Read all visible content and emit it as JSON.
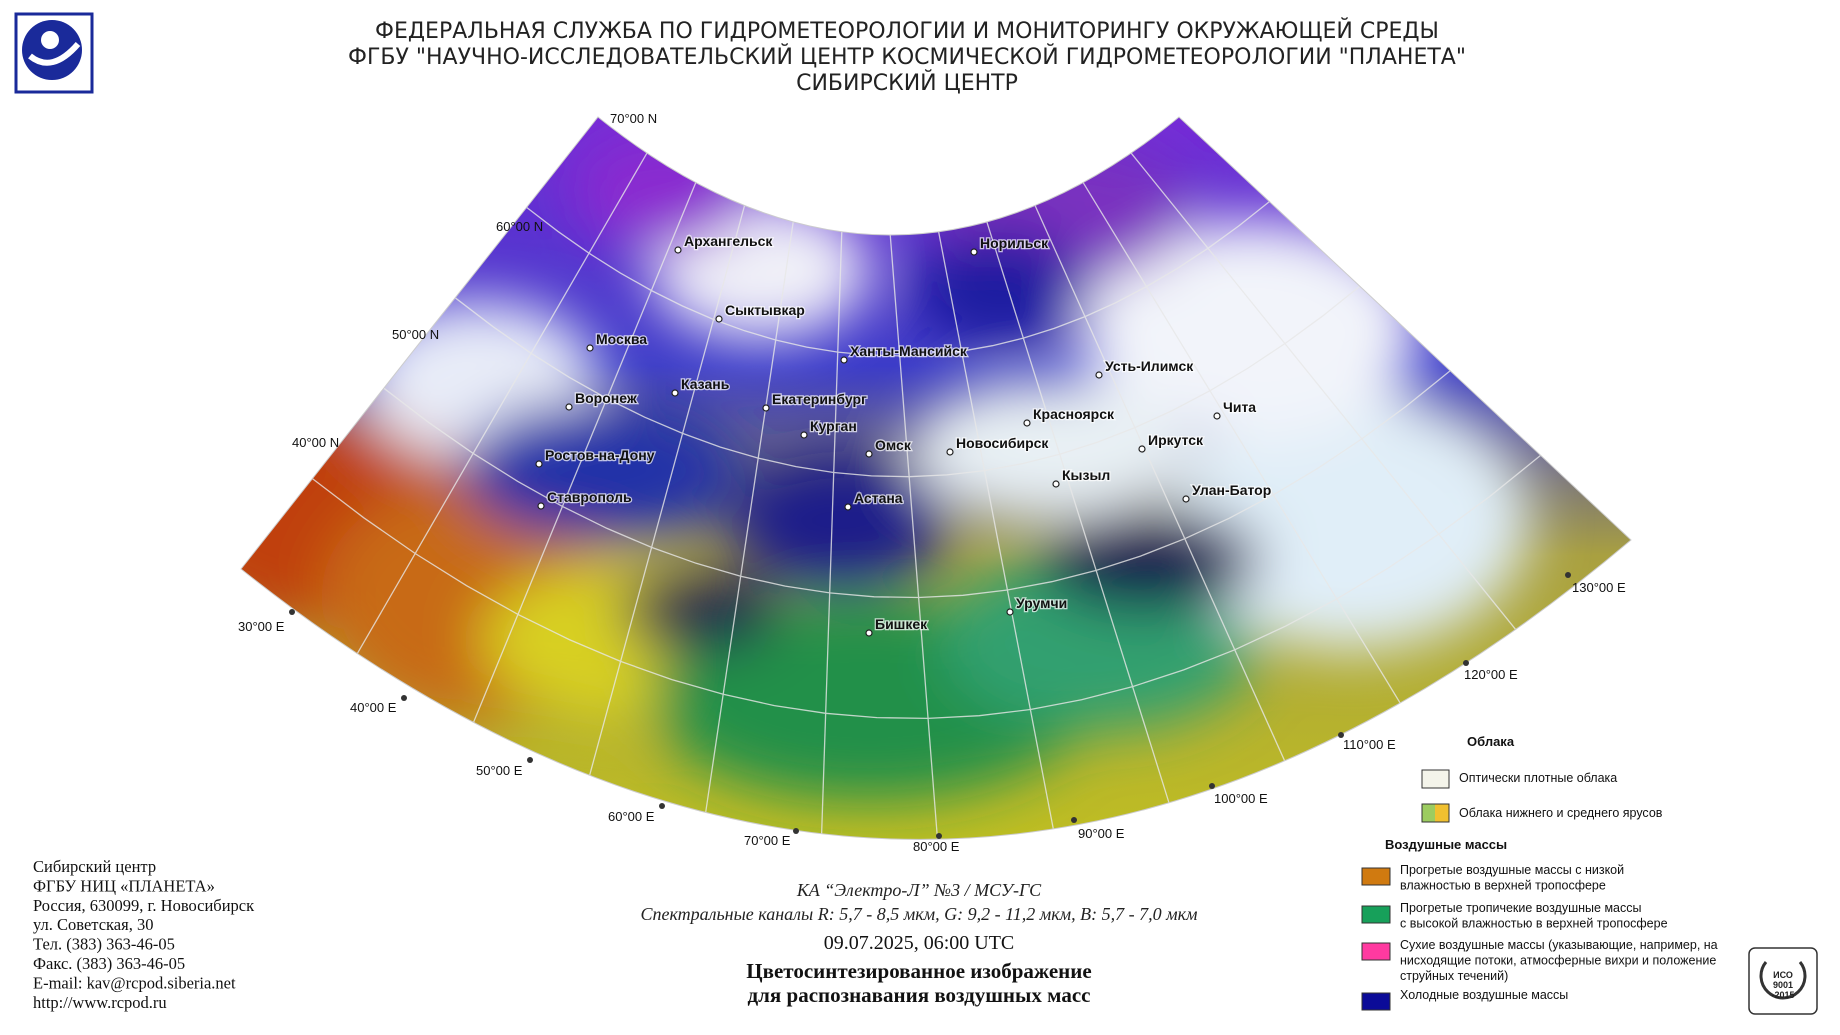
{
  "header": {
    "lines": [
      "ФЕДЕРАЛЬНАЯ СЛУЖБА ПО ГИДРОМЕТЕОРОЛОГИИ И МОНИТОРИНГУ ОКРУЖАЮЩЕЙ СРЕДЫ",
      "ФГБУ \"НАУЧНО-ИССЛЕДОВАТЕЛЬСКИЙ ЦЕНТР КОСМИЧЕСКОЙ ГИДРОМЕТЕОРОЛОГИИ \"ПЛАНЕТА\"",
      "СИБИРСКИЙ ЦЕНТР"
    ]
  },
  "map": {
    "latitude_labels": [
      "70°00 N",
      "60°00 N",
      "50°00 N",
      "40°00 N"
    ],
    "longitude_labels": [
      "30°00 E",
      "40°00 E",
      "50°00 E",
      "60°00 E",
      "70°00 E",
      "80°00 E",
      "90°00 E",
      "100°00 E",
      "110°00 E",
      "120°00 E",
      "130°00 E"
    ],
    "cities": [
      "Архангельск",
      "Норильск",
      "Сыктывкар",
      "Москва",
      "Ханты-Мансийск",
      "Усть-Илимск",
      "Казань",
      "Воронеж",
      "Екатеринбург",
      "Чита",
      "Красноярск",
      "Курган",
      "Омск",
      "Новосибирск",
      "Иркутск",
      "Ростов-на-Дону",
      "Кызыл",
      "Улан-Батор",
      "Ставрополь",
      "Астана",
      "Урумчи",
      "Бишкек"
    ]
  },
  "caption": {
    "satellite": "КА “Электро-Л” №3 / МСУ-ГС",
    "channels": "Спектральные каналы R: 5,7 - 8,5 мкм, G: 9,2 - 11,2 мкм, B: 5,7 - 7,0 мкм",
    "datetime": "09.07.2025, 06:00 UTC",
    "title_line1": "Цветосинтезированное изображение",
    "title_line2": "для распознавания воздушных масс"
  },
  "legend": {
    "clouds_title": "Облака",
    "clouds": [
      "Оптически плотные облака",
      "Облака нижнего и среднего ярусов"
    ],
    "air_masses_title": "Воздушные массы",
    "air_masses": [
      {
        "color": "#d07a10",
        "lines": [
          "Прогретые воздушные массы с низкой",
          "влажностью в верхней тропосфере"
        ]
      },
      {
        "color": "#17a05a",
        "lines": [
          "Прогретые тропичекие воздушные массы",
          "с высокой влажностью в верхней тропосфере"
        ]
      },
      {
        "color": "#ff3aa0",
        "lines": [
          "Сухие воздушные массы (указывающие, например, на",
          "нисходящие потоки, атмосферные вихри и положение",
          "струйных течений)"
        ]
      },
      {
        "color": "#0b0b98",
        "lines": [
          "Холодные воздушные массы"
        ]
      }
    ]
  },
  "footer": {
    "lines": [
      "Сибирский центр",
      "ФГБУ НИЦ «ПЛАНЕТА»",
      "Россия, 630099, г. Новосибирск",
      "ул. Советская, 30",
      "Тел. (383) 363-46-05",
      "Факс. (383) 363-46-05",
      "E-mail: kav@rcpod.siberia.net",
      "http://www.rcpod.ru"
    ]
  },
  "certificate": {
    "lines": [
      "ИСО",
      "9001",
      "-2015"
    ]
  }
}
